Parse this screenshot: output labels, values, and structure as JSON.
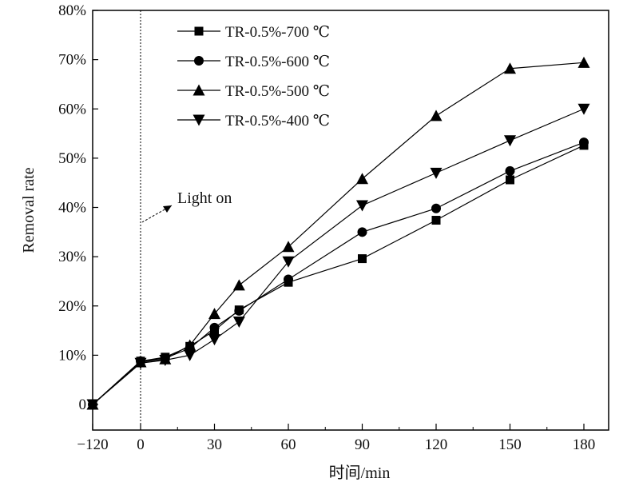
{
  "chart_data": {
    "type": "line",
    "title": "",
    "xlabel": "时间/min",
    "ylabel": "Removal rate",
    "x_tick_labels": [
      "−120",
      "0",
      "30",
      "60",
      "90",
      "120",
      "150",
      "180"
    ],
    "x_tick_values": [
      -120,
      0,
      30,
      60,
      90,
      120,
      150,
      180
    ],
    "y_tick_labels": [
      "0",
      "10%",
      "20%",
      "30%",
      "40%",
      "50%",
      "60%",
      "70%",
      "80%"
    ],
    "y_tick_values": [
      0,
      10,
      20,
      30,
      40,
      50,
      60,
      70,
      80
    ],
    "ylim": [
      0,
      80
    ],
    "grid": false,
    "legend_position": "top-left",
    "annotation": {
      "text": "Light on",
      "x": 0
    },
    "x": [
      -120,
      0,
      10,
      20,
      30,
      40,
      60,
      90,
      120,
      150,
      180
    ],
    "series": [
      {
        "name": "TR-0.5%-700 ℃",
        "marker": "square",
        "values": [
          0,
          8.8,
          9.6,
          11.8,
          15.0,
          19.2,
          24.8,
          29.6,
          37.4,
          45.6,
          52.6
        ]
      },
      {
        "name": "TR-0.5%-600 ℃",
        "marker": "circle",
        "values": [
          0,
          8.8,
          9.4,
          11.4,
          15.6,
          19.0,
          25.4,
          35.0,
          39.8,
          47.4,
          53.2
        ]
      },
      {
        "name": "TR-0.5%-500 ℃",
        "marker": "triangle-up",
        "values": [
          0,
          8.6,
          9.2,
          12.0,
          18.4,
          24.2,
          32.0,
          45.8,
          58.6,
          68.2,
          69.4
        ]
      },
      {
        "name": "TR-0.5%-400 ℃",
        "marker": "triangle-down",
        "values": [
          0,
          8.4,
          9.0,
          10.0,
          13.2,
          16.8,
          29.0,
          40.4,
          47.0,
          53.6,
          60.0
        ]
      }
    ]
  }
}
